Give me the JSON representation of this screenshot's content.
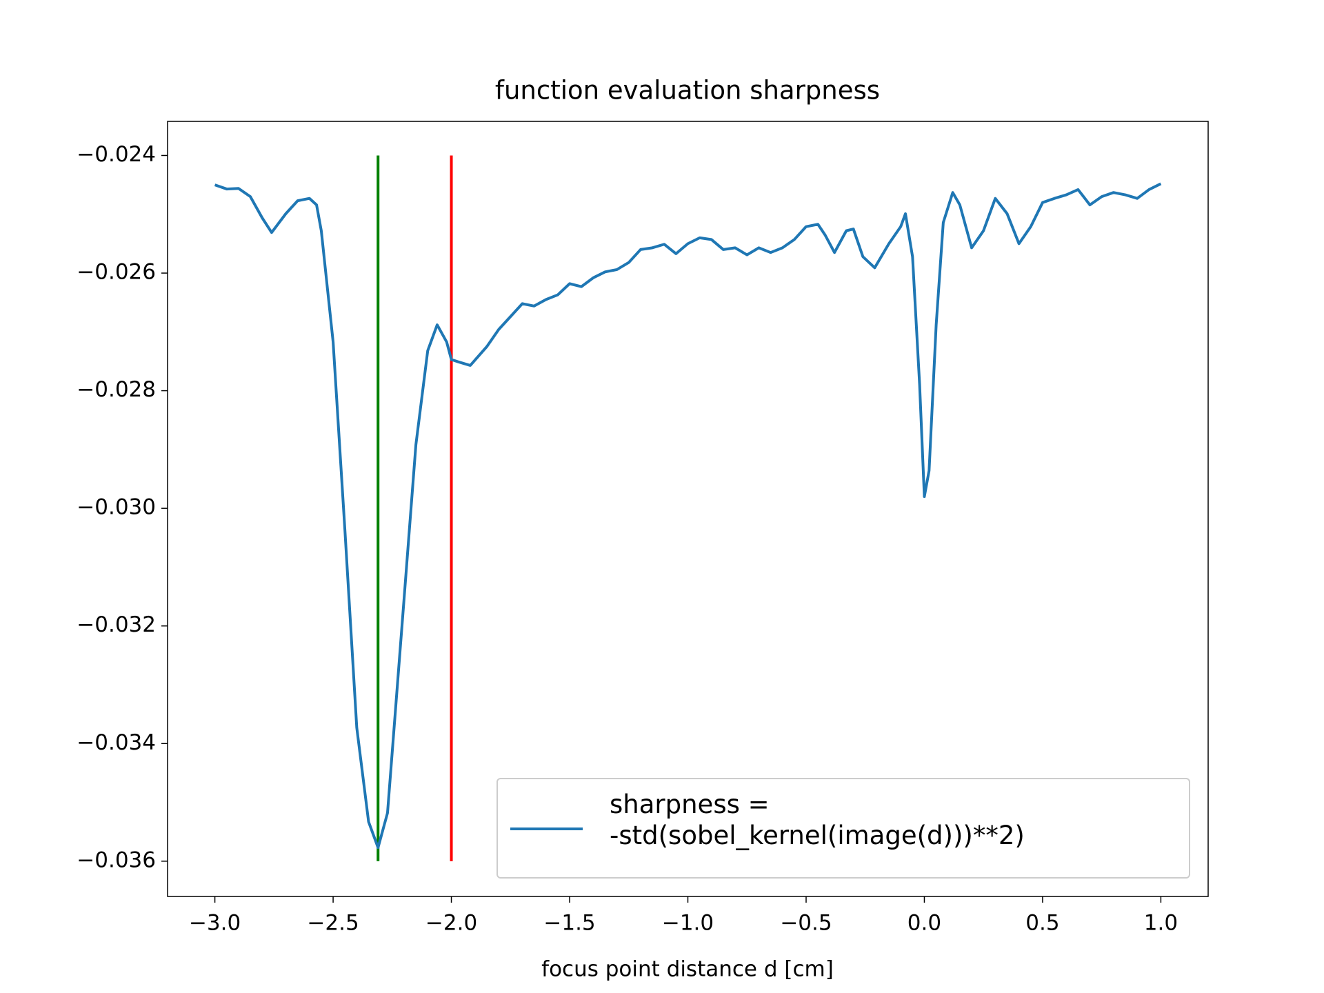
{
  "chart_data": {
    "type": "line",
    "title": "function evaluation sharpness",
    "xlabel": "focus point distance d [cm]",
    "x": [
      -3.0,
      -2.95,
      -2.9,
      -2.85,
      -2.8,
      -2.76,
      -2.7,
      -2.65,
      -2.6,
      -2.57,
      -2.55,
      -2.5,
      -2.45,
      -2.4,
      -2.35,
      -2.31,
      -2.27,
      -2.2,
      -2.15,
      -2.1,
      -2.06,
      -2.02,
      -2.0,
      -1.97,
      -1.92,
      -1.85,
      -1.8,
      -1.75,
      -1.7,
      -1.65,
      -1.6,
      -1.55,
      -1.5,
      -1.45,
      -1.4,
      -1.35,
      -1.3,
      -1.25,
      -1.2,
      -1.15,
      -1.1,
      -1.05,
      -1.0,
      -0.95,
      -0.9,
      -0.85,
      -0.8,
      -0.75,
      -0.7,
      -0.65,
      -0.6,
      -0.55,
      -0.5,
      -0.45,
      -0.42,
      -0.38,
      -0.33,
      -0.3,
      -0.26,
      -0.21,
      -0.15,
      -0.1,
      -0.08,
      -0.05,
      -0.02,
      0.0,
      0.02,
      0.05,
      0.08,
      0.12,
      0.15,
      0.2,
      0.25,
      0.3,
      0.35,
      0.4,
      0.45,
      0.5,
      0.55,
      0.6,
      0.65,
      0.7,
      0.75,
      0.8,
      0.85,
      0.9,
      0.95,
      1.0
    ],
    "series": [
      {
        "name": "sharpness =\n-std(sobel_kernel(image(d)))**2)",
        "color": "#1f77b4",
        "values": [
          -0.0245,
          -0.02457,
          -0.02456,
          -0.0247,
          -0.02506,
          -0.02531,
          -0.02499,
          -0.02477,
          -0.02473,
          -0.02484,
          -0.02528,
          -0.02717,
          -0.03038,
          -0.03373,
          -0.03533,
          -0.03577,
          -0.03518,
          -0.03154,
          -0.02892,
          -0.02732,
          -0.02688,
          -0.02717,
          -0.02747,
          -0.02751,
          -0.02757,
          -0.02725,
          -0.02696,
          -0.02674,
          -0.02652,
          -0.02656,
          -0.02645,
          -0.02637,
          -0.02618,
          -0.02623,
          -0.02608,
          -0.02598,
          -0.02594,
          -0.02582,
          -0.0256,
          -0.02557,
          -0.02551,
          -0.02567,
          -0.0255,
          -0.0254,
          -0.02543,
          -0.0256,
          -0.02557,
          -0.02569,
          -0.02557,
          -0.02565,
          -0.02557,
          -0.02543,
          -0.02521,
          -0.02517,
          -0.02535,
          -0.02565,
          -0.02528,
          -0.02525,
          -0.02572,
          -0.02591,
          -0.0255,
          -0.02521,
          -0.02499,
          -0.02572,
          -0.0279,
          -0.0298,
          -0.02936,
          -0.02688,
          -0.02514,
          -0.02463,
          -0.02484,
          -0.02557,
          -0.02528,
          -0.02473,
          -0.02499,
          -0.0255,
          -0.02521,
          -0.0248,
          -0.02473,
          -0.02467,
          -0.02458,
          -0.02484,
          -0.0247,
          -0.02463,
          -0.02467,
          -0.02473,
          -0.02458,
          -0.02448
        ]
      }
    ],
    "vlines": [
      {
        "x": -2.31,
        "ymin": -0.036,
        "ymax": -0.024,
        "color": "green"
      },
      {
        "x": -2.0,
        "ymin": -0.036,
        "ymax": -0.024,
        "color": "red"
      }
    ],
    "xlim": [
      -3.2,
      1.2
    ],
    "ylim": [
      -0.0366,
      -0.02342
    ],
    "xticks": [
      {
        "value": -3.0,
        "label": "−3.0"
      },
      {
        "value": -2.5,
        "label": "−2.5"
      },
      {
        "value": -2.0,
        "label": "−2.0"
      },
      {
        "value": -1.5,
        "label": "−1.5"
      },
      {
        "value": -1.0,
        "label": "−1.0"
      },
      {
        "value": -0.5,
        "label": "−0.5"
      },
      {
        "value": 0.0,
        "label": "0.0"
      },
      {
        "value": 0.5,
        "label": "0.5"
      },
      {
        "value": 1.0,
        "label": "1.0"
      }
    ],
    "yticks": [
      {
        "value": -0.024,
        "label": "−0.024"
      },
      {
        "value": -0.026,
        "label": "−0.026"
      },
      {
        "value": -0.028,
        "label": "−0.028"
      },
      {
        "value": -0.03,
        "label": "−0.030"
      },
      {
        "value": -0.032,
        "label": "−0.032"
      },
      {
        "value": -0.034,
        "label": "−0.034"
      },
      {
        "value": -0.036,
        "label": "−0.036"
      }
    ],
    "legend": "lower right"
  }
}
